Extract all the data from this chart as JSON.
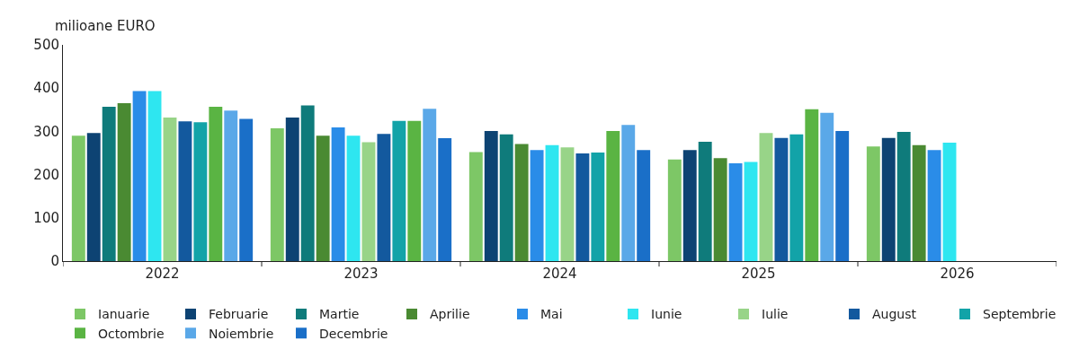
{
  "chart_data": {
    "type": "bar",
    "ylabel": "milioane EURO",
    "categories": [
      "2022",
      "2023",
      "2024",
      "2025",
      "2026"
    ],
    "series": [
      {
        "name": "Ianuarie",
        "color": "#7dc766",
        "values": [
          290,
          307,
          252,
          235,
          265
        ]
      },
      {
        "name": "Februarie",
        "color": "#0d4373",
        "values": [
          296,
          332,
          301,
          257,
          285
        ]
      },
      {
        "name": "Martie",
        "color": "#0f7b7b",
        "values": [
          357,
          360,
          293,
          276,
          299
        ]
      },
      {
        "name": "Aprilie",
        "color": "#4a8a32",
        "values": [
          365,
          290,
          271,
          238,
          268
        ]
      },
      {
        "name": "Mai",
        "color": "#2a8ce8",
        "values": [
          393,
          309,
          257,
          226,
          257
        ]
      },
      {
        "name": "Iunie",
        "color": "#2ee6f0",
        "values": [
          393,
          290,
          268,
          229,
          274
        ]
      },
      {
        "name": "Iulie",
        "color": "#98d488",
        "values": [
          332,
          275,
          263,
          296,
          null
        ]
      },
      {
        "name": "August",
        "color": "#13599e",
        "values": [
          323,
          294,
          249,
          285,
          null
        ]
      },
      {
        "name": "Septembrie",
        "color": "#12a3a8",
        "values": [
          321,
          324,
          251,
          293,
          null
        ]
      },
      {
        "name": "Octombrie",
        "color": "#5ab443",
        "values": [
          357,
          324,
          301,
          351,
          null
        ]
      },
      {
        "name": "Noiembrie",
        "color": "#5aa8e8",
        "values": [
          348,
          352,
          315,
          343,
          null
        ]
      },
      {
        "name": "Decembrie",
        "color": "#1a6fc8",
        "values": [
          329,
          284,
          257,
          301,
          null
        ]
      }
    ],
    "ylim": [
      0,
      500
    ],
    "yticks": [
      0,
      100,
      200,
      300,
      400,
      500
    ],
    "legend": "bottom"
  }
}
